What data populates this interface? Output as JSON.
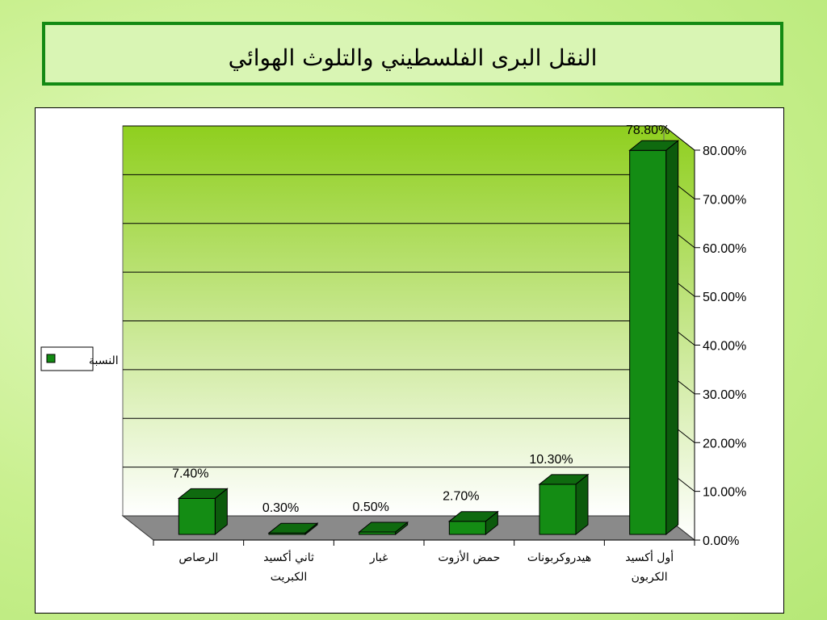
{
  "title": "النقل البرى الفلسطيني والتلوث الهوائي",
  "legend": {
    "label": "النسبة",
    "color": "#138a13"
  },
  "colors": {
    "bar": "#148c14",
    "bar_top": "#0f6a0f",
    "bar_side": "#0c5a0c",
    "floor": "#8a8a8a",
    "wall_top": "#8fcf1e",
    "wall_bottom": "#ffffff"
  },
  "chart_data": {
    "type": "bar",
    "categories": [
      [
        "الرصاص"
      ],
      [
        "ثاني أكسيد",
        "الكبريت"
      ],
      [
        "غبار"
      ],
      [
        "حمض الأزوت"
      ],
      [
        "هيدروكربونات"
      ],
      [
        "أول أكسيد",
        "الكربون"
      ]
    ],
    "values": [
      7.4,
      0.3,
      0.5,
      2.7,
      10.3,
      78.8
    ],
    "data_labels": [
      "7.40%",
      "0.30%",
      "0.50%",
      "2.70%",
      "10.30%",
      "78.80%"
    ],
    "y_ticks": [
      "0.00%",
      "10.00%",
      "20.00%",
      "30.00%",
      "40.00%",
      "50.00%",
      "60.00%",
      "70.00%",
      "80.00%"
    ],
    "ylim": [
      0,
      80
    ],
    "grid": true,
    "legend_position": "left",
    "y_axis_side": "right"
  }
}
